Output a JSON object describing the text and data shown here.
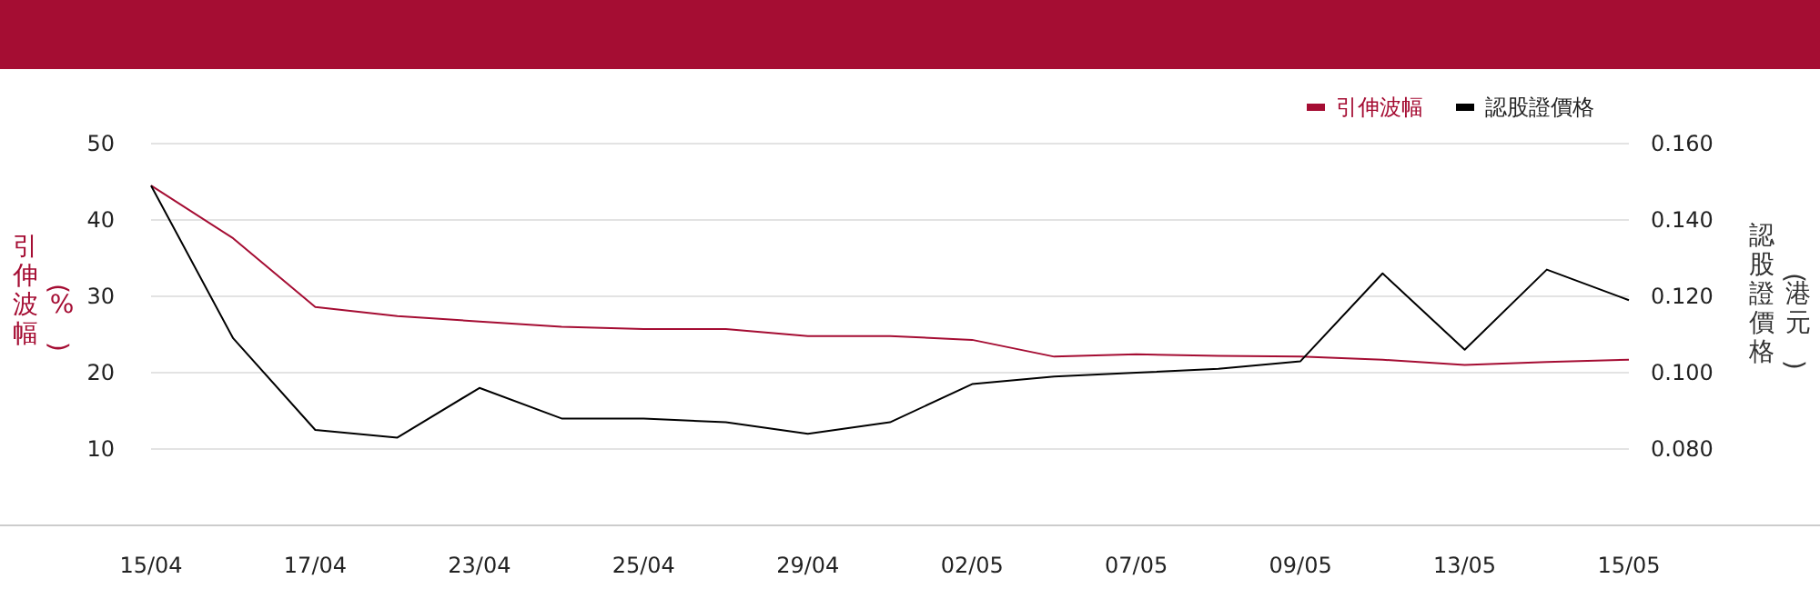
{
  "chart_data": {
    "type": "line",
    "ylabel": "引伸波幅(%)",
    "y2label": "認股證價格(港元)",
    "categories": [
      "15/04",
      null,
      "17/04",
      null,
      "23/04",
      null,
      "25/04",
      null,
      "29/04",
      null,
      "02/05",
      null,
      "07/05",
      null,
      "09/05",
      null,
      "13/05",
      null,
      "15/05"
    ],
    "series": [
      {
        "name": "引伸波幅",
        "color": "#a50d33",
        "values": [
          44.5,
          37.6,
          28.6,
          27.4,
          26.7,
          26.0,
          25.7,
          25.7,
          24.8,
          24.8,
          24.3,
          22.1,
          22.4,
          22.2,
          22.1,
          21.7,
          21.0,
          21.4,
          21.7
        ]
      },
      {
        "name": "認股證價格",
        "color": "#000000",
        "axis": "y2",
        "values": [
          0.149,
          0.109,
          0.085,
          0.083,
          0.096,
          0.088,
          0.088,
          0.087,
          0.084,
          0.087,
          0.097,
          0.099,
          0.1,
          0.101,
          0.103,
          0.126,
          0.106,
          0.127,
          0.119
        ]
      }
    ],
    "ylim": [
      0,
      50
    ],
    "yticks": [
      10,
      20,
      30,
      40,
      50
    ],
    "y2lim": [
      0.06,
      0.16
    ],
    "y2ticks": [
      {
        "value": 0.08,
        "label": "0.080"
      },
      {
        "value": 0.1,
        "label": "0.100"
      },
      {
        "value": 0.12,
        "label": "0.120"
      },
      {
        "value": 0.14,
        "label": "0.140"
      },
      {
        "value": 0.16,
        "label": "0.160"
      }
    ],
    "grid": "y",
    "legend": "top right",
    "marker": "none",
    "line_style": "solid"
  }
}
